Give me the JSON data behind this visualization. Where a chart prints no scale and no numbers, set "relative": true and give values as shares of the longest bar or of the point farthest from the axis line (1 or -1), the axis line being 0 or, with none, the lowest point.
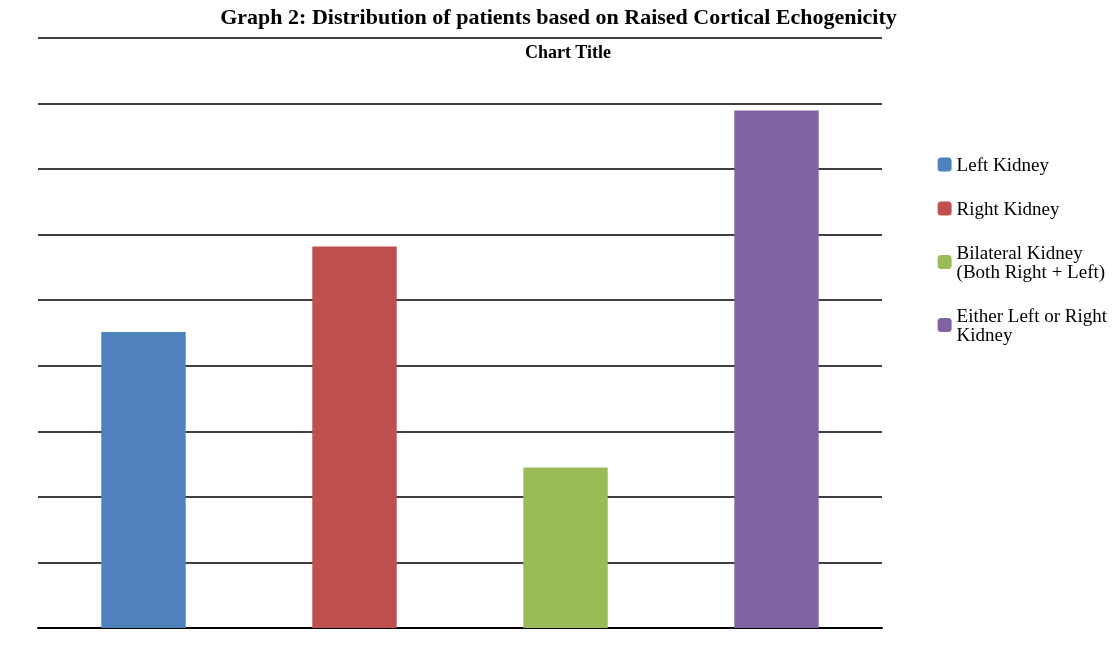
{
  "chart_data": {
    "type": "bar",
    "title": "Graph 2: Distribution of patients based on Raised Cortical Echogenicity",
    "subtitle": "Chart Title",
    "relative": true,
    "stacked": true,
    "grid": "y",
    "legend": "right",
    "categories": [
      null,
      null,
      null,
      null
    ],
    "series": [
      {
        "name": "Left Kidney",
        "color": "#4f81bd",
        "values": [
          0.572,
          null,
          null,
          null
        ]
      },
      {
        "name": "Right Kidney",
        "color": "#c0504d",
        "values": [
          null,
          0.737,
          null,
          null
        ]
      },
      {
        "name": "Bilateral Kidney\n(Both Right + Left)",
        "color": "#9bbb59",
        "values": [
          null,
          null,
          0.31,
          null
        ]
      },
      {
        "name": "Either Left or Right\nKidney",
        "color": "#8064a2",
        "values": [
          null,
          null,
          null,
          1
        ]
      }
    ]
  }
}
